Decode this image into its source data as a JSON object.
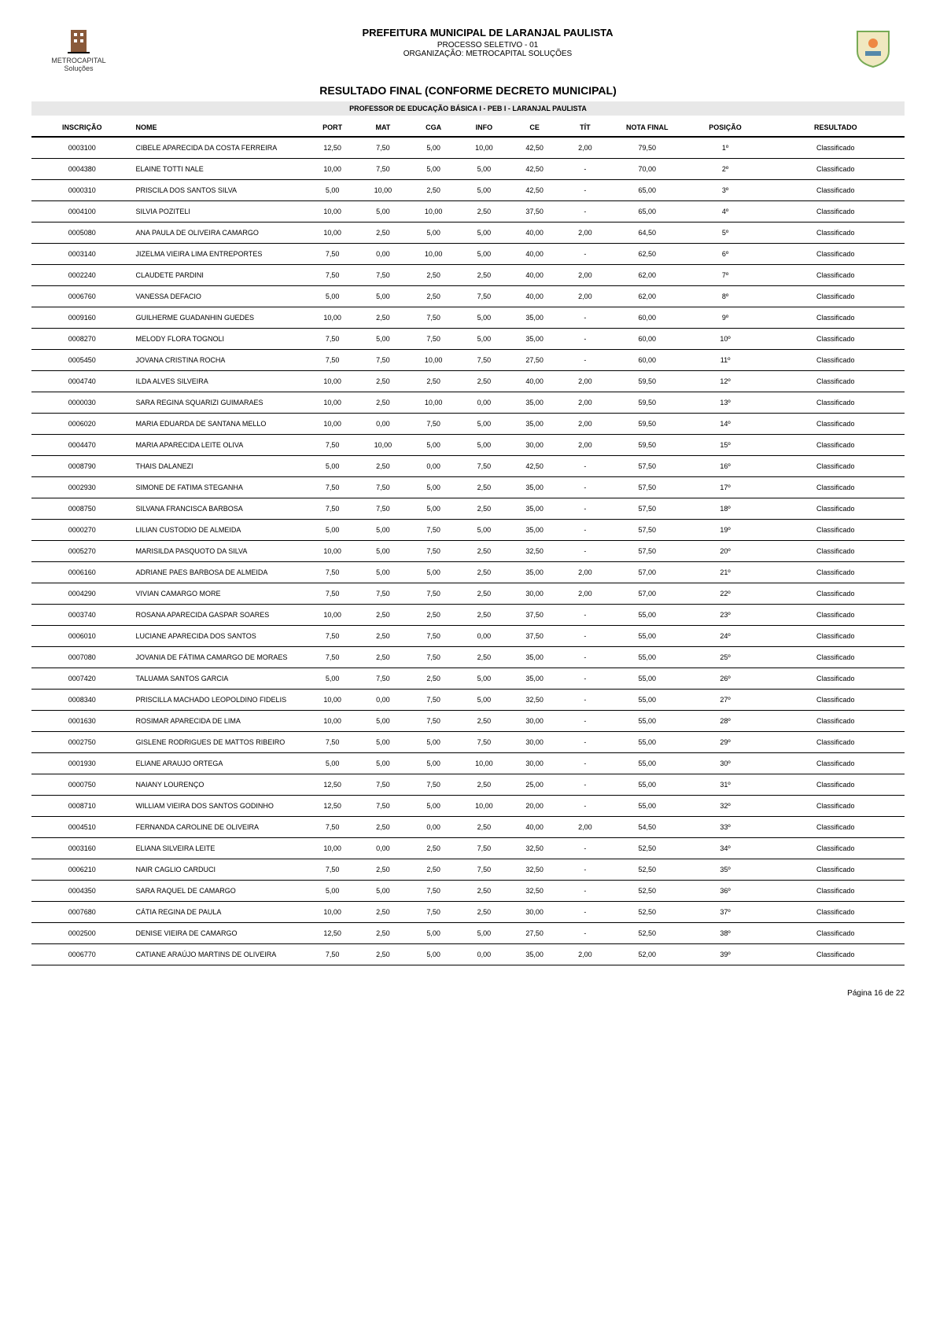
{
  "header": {
    "left_logo": {
      "name": "METROCAPITAL",
      "sub": "Soluções"
    },
    "title": "PREFEITURA MUNICIPAL DE LARANJAL PAULISTA",
    "line1": "PROCESSO SELETIVO - 01",
    "line2": "ORGANIZAÇÃO: METROCAPITAL SOLUÇÕES",
    "result_title": "RESULTADO FINAL (CONFORME DECRETO MUNICIPAL)",
    "category": "PROFESSOR DE EDUCAÇÃO BÁSICA I - PEB I - LARANJAL PAULISTA"
  },
  "columns": {
    "inscricao": "INSCRIÇÃO",
    "nome": "NOME",
    "port": "PORT",
    "mat": "MAT",
    "cga": "CGA",
    "info": "INFO",
    "ce": "CE",
    "tit": "TÍT",
    "nota_final": "NOTA FINAL",
    "posicao": "POSIÇÃO",
    "resultado": "RESULTADO"
  },
  "rows": [
    {
      "inscricao": "0003100",
      "nome": "CIBELE APARECIDA DA COSTA FERREIRA",
      "port": "12,50",
      "mat": "7,50",
      "cga": "5,00",
      "info": "10,00",
      "ce": "42,50",
      "tit": "2,00",
      "nota": "79,50",
      "pos": "1º",
      "res": "Classificado"
    },
    {
      "inscricao": "0004380",
      "nome": "ELAINE TOTTI NALE",
      "port": "10,00",
      "mat": "7,50",
      "cga": "5,00",
      "info": "5,00",
      "ce": "42,50",
      "tit": "-",
      "nota": "70,00",
      "pos": "2º",
      "res": "Classificado"
    },
    {
      "inscricao": "0000310",
      "nome": "PRISCILA DOS SANTOS SILVA",
      "port": "5,00",
      "mat": "10,00",
      "cga": "2,50",
      "info": "5,00",
      "ce": "42,50",
      "tit": "-",
      "nota": "65,00",
      "pos": "3º",
      "res": "Classificado"
    },
    {
      "inscricao": "0004100",
      "nome": "SILVIA POZITELI",
      "port": "10,00",
      "mat": "5,00",
      "cga": "10,00",
      "info": "2,50",
      "ce": "37,50",
      "tit": "-",
      "nota": "65,00",
      "pos": "4º",
      "res": "Classificado"
    },
    {
      "inscricao": "0005080",
      "nome": "ANA PAULA DE OLIVEIRA CAMARGO",
      "port": "10,00",
      "mat": "2,50",
      "cga": "5,00",
      "info": "5,00",
      "ce": "40,00",
      "tit": "2,00",
      "nota": "64,50",
      "pos": "5º",
      "res": "Classificado"
    },
    {
      "inscricao": "0003140",
      "nome": "JIZELMA VIEIRA LIMA ENTREPORTES",
      "port": "7,50",
      "mat": "0,00",
      "cga": "10,00",
      "info": "5,00",
      "ce": "40,00",
      "tit": "-",
      "nota": "62,50",
      "pos": "6º",
      "res": "Classificado"
    },
    {
      "inscricao": "0002240",
      "nome": "CLAUDETE PARDINI",
      "port": "7,50",
      "mat": "7,50",
      "cga": "2,50",
      "info": "2,50",
      "ce": "40,00",
      "tit": "2,00",
      "nota": "62,00",
      "pos": "7º",
      "res": "Classificado"
    },
    {
      "inscricao": "0006760",
      "nome": "VANESSA DEFACIO",
      "port": "5,00",
      "mat": "5,00",
      "cga": "2,50",
      "info": "7,50",
      "ce": "40,00",
      "tit": "2,00",
      "nota": "62,00",
      "pos": "8º",
      "res": "Classificado"
    },
    {
      "inscricao": "0009160",
      "nome": "GUILHERME GUADANHIN GUEDES",
      "port": "10,00",
      "mat": "2,50",
      "cga": "7,50",
      "info": "5,00",
      "ce": "35,00",
      "tit": "-",
      "nota": "60,00",
      "pos": "9º",
      "res": "Classificado"
    },
    {
      "inscricao": "0008270",
      "nome": "MELODY FLORA TOGNOLI",
      "port": "7,50",
      "mat": "5,00",
      "cga": "7,50",
      "info": "5,00",
      "ce": "35,00",
      "tit": "-",
      "nota": "60,00",
      "pos": "10º",
      "res": "Classificado"
    },
    {
      "inscricao": "0005450",
      "nome": "JOVANA CRISTINA ROCHA",
      "port": "7,50",
      "mat": "7,50",
      "cga": "10,00",
      "info": "7,50",
      "ce": "27,50",
      "tit": "-",
      "nota": "60,00",
      "pos": "11º",
      "res": "Classificado"
    },
    {
      "inscricao": "0004740",
      "nome": "ILDA ALVES SILVEIRA",
      "port": "10,00",
      "mat": "2,50",
      "cga": "2,50",
      "info": "2,50",
      "ce": "40,00",
      "tit": "2,00",
      "nota": "59,50",
      "pos": "12º",
      "res": "Classificado"
    },
    {
      "inscricao": "0000030",
      "nome": "SARA REGINA SQUARIZI GUIMARAES",
      "port": "10,00",
      "mat": "2,50",
      "cga": "10,00",
      "info": "0,00",
      "ce": "35,00",
      "tit": "2,00",
      "nota": "59,50",
      "pos": "13º",
      "res": "Classificado"
    },
    {
      "inscricao": "0006020",
      "nome": "MARIA EDUARDA DE SANTANA MELLO",
      "port": "10,00",
      "mat": "0,00",
      "cga": "7,50",
      "info": "5,00",
      "ce": "35,00",
      "tit": "2,00",
      "nota": "59,50",
      "pos": "14º",
      "res": "Classificado"
    },
    {
      "inscricao": "0004470",
      "nome": "MARIA APARECIDA LEITE OLIVA",
      "port": "7,50",
      "mat": "10,00",
      "cga": "5,00",
      "info": "5,00",
      "ce": "30,00",
      "tit": "2,00",
      "nota": "59,50",
      "pos": "15º",
      "res": "Classificado"
    },
    {
      "inscricao": "0008790",
      "nome": "THAIS DALANEZI",
      "port": "5,00",
      "mat": "2,50",
      "cga": "0,00",
      "info": "7,50",
      "ce": "42,50",
      "tit": "-",
      "nota": "57,50",
      "pos": "16º",
      "res": "Classificado"
    },
    {
      "inscricao": "0002930",
      "nome": "SIMONE DE FATIMA STEGANHA",
      "port": "7,50",
      "mat": "7,50",
      "cga": "5,00",
      "info": "2,50",
      "ce": "35,00",
      "tit": "-",
      "nota": "57,50",
      "pos": "17º",
      "res": "Classificado"
    },
    {
      "inscricao": "0008750",
      "nome": "SILVANA FRANCISCA BARBOSA",
      "port": "7,50",
      "mat": "7,50",
      "cga": "5,00",
      "info": "2,50",
      "ce": "35,00",
      "tit": "-",
      "nota": "57,50",
      "pos": "18º",
      "res": "Classificado"
    },
    {
      "inscricao": "0000270",
      "nome": "LILIAN CUSTODIO DE ALMEIDA",
      "port": "5,00",
      "mat": "5,00",
      "cga": "7,50",
      "info": "5,00",
      "ce": "35,00",
      "tit": "-",
      "nota": "57,50",
      "pos": "19º",
      "res": "Classificado"
    },
    {
      "inscricao": "0005270",
      "nome": "MARISILDA PASQUOTO DA SILVA",
      "port": "10,00",
      "mat": "5,00",
      "cga": "7,50",
      "info": "2,50",
      "ce": "32,50",
      "tit": "-",
      "nota": "57,50",
      "pos": "20º",
      "res": "Classificado"
    },
    {
      "inscricao": "0006160",
      "nome": "ADRIANE PAES BARBOSA DE ALMEIDA",
      "port": "7,50",
      "mat": "5,00",
      "cga": "5,00",
      "info": "2,50",
      "ce": "35,00",
      "tit": "2,00",
      "nota": "57,00",
      "pos": "21º",
      "res": "Classificado"
    },
    {
      "inscricao": "0004290",
      "nome": "VIVIAN CAMARGO MORE",
      "port": "7,50",
      "mat": "7,50",
      "cga": "7,50",
      "info": "2,50",
      "ce": "30,00",
      "tit": "2,00",
      "nota": "57,00",
      "pos": "22º",
      "res": "Classificado"
    },
    {
      "inscricao": "0003740",
      "nome": "ROSANA APARECIDA GASPAR SOARES",
      "port": "10,00",
      "mat": "2,50",
      "cga": "2,50",
      "info": "2,50",
      "ce": "37,50",
      "tit": "-",
      "nota": "55,00",
      "pos": "23º",
      "res": "Classificado"
    },
    {
      "inscricao": "0006010",
      "nome": "LUCIANE APARECIDA DOS SANTOS",
      "port": "7,50",
      "mat": "2,50",
      "cga": "7,50",
      "info": "0,00",
      "ce": "37,50",
      "tit": "-",
      "nota": "55,00",
      "pos": "24º",
      "res": "Classificado"
    },
    {
      "inscricao": "0007080",
      "nome": "JOVANIA DE FÁTIMA CAMARGO DE MORAES",
      "port": "7,50",
      "mat": "2,50",
      "cga": "7,50",
      "info": "2,50",
      "ce": "35,00",
      "tit": "-",
      "nota": "55,00",
      "pos": "25º",
      "res": "Classificado"
    },
    {
      "inscricao": "0007420",
      "nome": "TALUAMA SANTOS GARCIA",
      "port": "5,00",
      "mat": "7,50",
      "cga": "2,50",
      "info": "5,00",
      "ce": "35,00",
      "tit": "-",
      "nota": "55,00",
      "pos": "26º",
      "res": "Classificado"
    },
    {
      "inscricao": "0008340",
      "nome": "PRISCILLA MACHADO LEOPOLDINO FIDELIS",
      "port": "10,00",
      "mat": "0,00",
      "cga": "7,50",
      "info": "5,00",
      "ce": "32,50",
      "tit": "-",
      "nota": "55,00",
      "pos": "27º",
      "res": "Classificado"
    },
    {
      "inscricao": "0001630",
      "nome": "ROSIMAR APARECIDA DE LIMA",
      "port": "10,00",
      "mat": "5,00",
      "cga": "7,50",
      "info": "2,50",
      "ce": "30,00",
      "tit": "-",
      "nota": "55,00",
      "pos": "28º",
      "res": "Classificado"
    },
    {
      "inscricao": "0002750",
      "nome": "GISLENE RODRIGUES DE MATTOS RIBEIRO",
      "port": "7,50",
      "mat": "5,00",
      "cga": "5,00",
      "info": "7,50",
      "ce": "30,00",
      "tit": "-",
      "nota": "55,00",
      "pos": "29º",
      "res": "Classificado"
    },
    {
      "inscricao": "0001930",
      "nome": "ELIANE ARAUJO ORTEGA",
      "port": "5,00",
      "mat": "5,00",
      "cga": "5,00",
      "info": "10,00",
      "ce": "30,00",
      "tit": "-",
      "nota": "55,00",
      "pos": "30º",
      "res": "Classificado"
    },
    {
      "inscricao": "0000750",
      "nome": "NAIANY LOURENÇO",
      "port": "12,50",
      "mat": "7,50",
      "cga": "7,50",
      "info": "2,50",
      "ce": "25,00",
      "tit": "-",
      "nota": "55,00",
      "pos": "31º",
      "res": "Classificado"
    },
    {
      "inscricao": "0008710",
      "nome": "WILLIAM VIEIRA DOS SANTOS GODINHO",
      "port": "12,50",
      "mat": "7,50",
      "cga": "5,00",
      "info": "10,00",
      "ce": "20,00",
      "tit": "-",
      "nota": "55,00",
      "pos": "32º",
      "res": "Classificado"
    },
    {
      "inscricao": "0004510",
      "nome": "FERNANDA CAROLINE DE OLIVEIRA",
      "port": "7,50",
      "mat": "2,50",
      "cga": "0,00",
      "info": "2,50",
      "ce": "40,00",
      "tit": "2,00",
      "nota": "54,50",
      "pos": "33º",
      "res": "Classificado"
    },
    {
      "inscricao": "0003160",
      "nome": "ELIANA SILVEIRA LEITE",
      "port": "10,00",
      "mat": "0,00",
      "cga": "2,50",
      "info": "7,50",
      "ce": "32,50",
      "tit": "-",
      "nota": "52,50",
      "pos": "34º",
      "res": "Classificado"
    },
    {
      "inscricao": "0006210",
      "nome": "NAIR CAGLIO CARDUCI",
      "port": "7,50",
      "mat": "2,50",
      "cga": "2,50",
      "info": "7,50",
      "ce": "32,50",
      "tit": "-",
      "nota": "52,50",
      "pos": "35º",
      "res": "Classificado"
    },
    {
      "inscricao": "0004350",
      "nome": "SARA RAQUEL DE CAMARGO",
      "port": "5,00",
      "mat": "5,00",
      "cga": "7,50",
      "info": "2,50",
      "ce": "32,50",
      "tit": "-",
      "nota": "52,50",
      "pos": "36º",
      "res": "Classificado"
    },
    {
      "inscricao": "0007680",
      "nome": "CÁTIA REGINA DE PAULA",
      "port": "10,00",
      "mat": "2,50",
      "cga": "7,50",
      "info": "2,50",
      "ce": "30,00",
      "tit": "-",
      "nota": "52,50",
      "pos": "37º",
      "res": "Classificado"
    },
    {
      "inscricao": "0002500",
      "nome": "DENISE VIEIRA DE CAMARGO",
      "port": "12,50",
      "mat": "2,50",
      "cga": "5,00",
      "info": "5,00",
      "ce": "27,50",
      "tit": "-",
      "nota": "52,50",
      "pos": "38º",
      "res": "Classificado"
    },
    {
      "inscricao": "0006770",
      "nome": "CATIANE ARAÚJO MARTINS DE OLIVEIRA",
      "port": "7,50",
      "mat": "2,50",
      "cga": "5,00",
      "info": "0,00",
      "ce": "35,00",
      "tit": "2,00",
      "nota": "52,00",
      "pos": "39º",
      "res": "Classificado"
    }
  ],
  "footer": {
    "page": "Página 16 de 22"
  },
  "style": {
    "row_border_color": "#000000",
    "category_bg": "#e8e8e8",
    "body_font_size": 9,
    "header_font_size": 13
  }
}
